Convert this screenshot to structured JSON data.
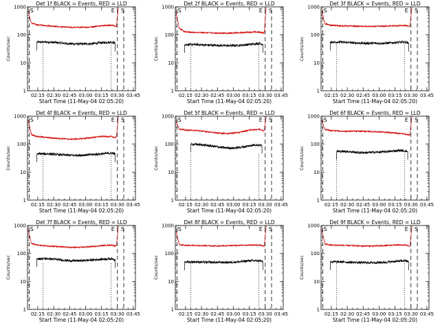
{
  "figure": {
    "colors": {
      "events": "#000000",
      "lld": "#d00000",
      "axes": "#000000"
    },
    "common": {
      "ylabel": "Counts/sec",
      "xlabel": "Start Time (11-May-04 02:05:20)",
      "y_ticks": [
        "1",
        "10",
        "100",
        "1000"
      ],
      "x_ticks": [
        "02:15",
        "02:30",
        "02:45",
        "03:00",
        "03:15",
        "03:30",
        "03:45"
      ],
      "marker_s": "S",
      "marker_e": "E"
    }
  },
  "chart_data": [
    {
      "type": "line",
      "title": "Det 1f BLACK = Events, RED = LLD",
      "xlabel": "Start Time (11-May-04 02:05:20)",
      "ylabel": "Counts/sec",
      "y_scale": "log",
      "ylim": [
        1,
        1000
      ],
      "xlim": [
        "02:05:20",
        "03:47:00"
      ],
      "series": [
        {
          "name": "Events",
          "color": "#000000",
          "x": [
            "02:14",
            "02:25",
            "02:35",
            "02:45",
            "02:55",
            "03:05",
            "03:15",
            "03:25",
            "03:28"
          ],
          "y": [
            55,
            55,
            52,
            48,
            47,
            48,
            52,
            55,
            50
          ]
        },
        {
          "name": "LLD",
          "color": "#d00000",
          "x": [
            "02:06",
            "02:09",
            "02:14",
            "02:25",
            "02:35",
            "02:45",
            "02:55",
            "03:05",
            "03:15",
            "03:25",
            "03:29",
            "03:31"
          ],
          "y": [
            700,
            260,
            230,
            210,
            195,
            185,
            185,
            190,
            215,
            220,
            200,
            1000
          ]
        }
      ],
      "vertical_lines": {
        "dashed": [
          "02:07",
          "03:30",
          "03:36"
        ],
        "dotted": [
          "02:20",
          "03:24"
        ]
      }
    },
    {
      "type": "line",
      "title": "Det 2f BLACK = Events, RED = LLD",
      "xlabel": "Start Time (11-May-04 02:05:20)",
      "ylabel": "Counts/sec",
      "y_scale": "log",
      "ylim": [
        1,
        1000
      ],
      "xlim": [
        "02:05:20",
        "03:47:00"
      ],
      "series": [
        {
          "name": "Events",
          "color": "#000000",
          "x": [
            "02:14",
            "02:25",
            "02:35",
            "02:45",
            "02:55",
            "03:05",
            "03:15",
            "03:25",
            "03:28"
          ],
          "y": [
            45,
            45,
            43,
            42,
            41,
            42,
            45,
            50,
            45
          ]
        },
        {
          "name": "LLD",
          "color": "#d00000",
          "x": [
            "02:06",
            "02:09",
            "02:14",
            "02:25",
            "02:35",
            "02:45",
            "02:55",
            "03:05",
            "03:15",
            "03:25",
            "03:29",
            "03:31"
          ],
          "y": [
            650,
            170,
            130,
            120,
            120,
            115,
            115,
            118,
            125,
            125,
            115,
            1000
          ]
        }
      ],
      "vertical_lines": {
        "dashed": [
          "02:07",
          "03:30",
          "03:36"
        ],
        "dotted": [
          "02:20",
          "03:24"
        ]
      }
    },
    {
      "type": "line",
      "title": "Det 3f BLACK = Events, RED = LLD",
      "xlabel": "Start Time (11-May-04 02:05:20)",
      "ylabel": "Counts/sec",
      "y_scale": "log",
      "ylim": [
        1,
        1000
      ],
      "xlim": [
        "02:05:20",
        "03:47:00"
      ],
      "series": [
        {
          "name": "Events",
          "color": "#000000",
          "x": [
            "02:14",
            "02:25",
            "02:35",
            "02:45",
            "02:55",
            "03:05",
            "03:15",
            "03:25",
            "03:28"
          ],
          "y": [
            55,
            55,
            52,
            50,
            50,
            50,
            53,
            55,
            50
          ]
        },
        {
          "name": "LLD",
          "color": "#d00000",
          "x": [
            "02:06",
            "02:09",
            "02:14",
            "02:25",
            "02:35",
            "02:45",
            "02:55",
            "03:05",
            "03:15",
            "03:25",
            "03:29",
            "03:31"
          ],
          "y": [
            700,
            250,
            220,
            210,
            205,
            200,
            200,
            205,
            210,
            215,
            200,
            1000
          ]
        }
      ],
      "vertical_lines": {
        "dashed": [
          "02:07",
          "03:30",
          "03:36"
        ],
        "dotted": [
          "02:20",
          "03:24"
        ]
      }
    },
    {
      "type": "line",
      "title": "Det 4f BLACK = Events, RED = LLD",
      "xlabel": "Start Time (11-May-04 02:05:20)",
      "ylabel": "Counts/sec",
      "y_scale": "log",
      "ylim": [
        1,
        1000
      ],
      "xlim": [
        "02:05:20",
        "03:47:00"
      ],
      "series": [
        {
          "name": "Events",
          "color": "#000000",
          "x": [
            "02:14",
            "02:25",
            "02:35",
            "02:45",
            "02:55",
            "03:05",
            "03:15",
            "03:25",
            "03:28"
          ],
          "y": [
            45,
            45,
            42,
            40,
            40,
            42,
            45,
            48,
            45
          ]
        },
        {
          "name": "LLD",
          "color": "#d00000",
          "x": [
            "02:06",
            "02:09",
            "02:14",
            "02:25",
            "02:35",
            "02:45",
            "02:55",
            "03:05",
            "03:15",
            "03:25",
            "03:29",
            "03:31"
          ],
          "y": [
            700,
            220,
            190,
            170,
            160,
            150,
            155,
            170,
            190,
            185,
            170,
            1000
          ]
        }
      ],
      "vertical_lines": {
        "dashed": [
          "02:07",
          "03:30",
          "03:36"
        ],
        "dotted": [
          "02:20",
          "03:24"
        ]
      }
    },
    {
      "type": "line",
      "title": "Det 5f BLACK = Events, RED = LLD",
      "xlabel": "Start Time (11-May-04 02:05:20)",
      "ylabel": "Counts/sec",
      "y_scale": "log",
      "ylim": [
        1,
        1000
      ],
      "xlim": [
        "02:05:20",
        "03:47:00"
      ],
      "series": [
        {
          "name": "Events",
          "color": "#000000",
          "x": [
            "02:20",
            "02:30",
            "02:40",
            "02:50",
            "03:00",
            "03:10",
            "03:20",
            "03:27"
          ],
          "y": [
            100,
            95,
            85,
            75,
            72,
            80,
            95,
            90
          ]
        },
        {
          "name": "LLD",
          "color": "#d00000",
          "x": [
            "02:06",
            "02:09",
            "02:14",
            "02:25",
            "02:35",
            "02:45",
            "02:55",
            "03:05",
            "03:15",
            "03:25",
            "03:29",
            "03:31"
          ],
          "y": [
            650,
            350,
            320,
            310,
            280,
            250,
            240,
            260,
            320,
            340,
            300,
            1000
          ]
        }
      ],
      "vertical_lines": {
        "dashed": [
          "02:07",
          "03:30",
          "03:36"
        ],
        "dotted": [
          "02:20",
          "03:24"
        ]
      }
    },
    {
      "type": "line",
      "title": "Det 6f BLACK = Events, RED = LLD",
      "xlabel": "Start Time (11-May-04 02:05:20)",
      "ylabel": "Counts/sec",
      "y_scale": "log",
      "ylim": [
        1,
        1000
      ],
      "xlim": [
        "02:05:20",
        "03:47:00"
      ],
      "series": [
        {
          "name": "Events",
          "color": "#000000",
          "x": [
            "02:20",
            "02:30",
            "02:40",
            "02:50",
            "03:00",
            "03:10",
            "03:20",
            "03:27"
          ],
          "y": [
            55,
            55,
            50,
            50,
            52,
            55,
            60,
            55
          ]
        },
        {
          "name": "LLD",
          "color": "#d00000",
          "x": [
            "02:06",
            "02:09",
            "02:14",
            "02:25",
            "02:35",
            "02:45",
            "02:55",
            "03:05",
            "03:15",
            "03:25",
            "03:29",
            "03:31"
          ],
          "y": [
            700,
            330,
            310,
            290,
            290,
            290,
            280,
            270,
            250,
            230,
            210,
            1000
          ]
        }
      ],
      "vertical_lines": {
        "dashed": [
          "02:07",
          "03:30",
          "03:36"
        ],
        "dotted": [
          "02:20",
          "03:24"
        ]
      }
    },
    {
      "type": "line",
      "title": "Det 7f BLACK = Events, RED = LLD",
      "xlabel": "Start Time (11-May-04 02:05:20)",
      "ylabel": "Counts/sec",
      "y_scale": "log",
      "ylim": [
        1,
        1000
      ],
      "xlim": [
        "02:05:20",
        "03:47:00"
      ],
      "series": [
        {
          "name": "Events",
          "color": "#000000",
          "x": [
            "02:14",
            "02:25",
            "02:35",
            "02:45",
            "02:55",
            "03:05",
            "03:15",
            "03:25",
            "03:28"
          ],
          "y": [
            65,
            65,
            60,
            55,
            55,
            58,
            62,
            65,
            60
          ]
        },
        {
          "name": "LLD",
          "color": "#d00000",
          "x": [
            "02:06",
            "02:09",
            "02:14",
            "02:25",
            "02:35",
            "02:45",
            "02:55",
            "03:05",
            "03:15",
            "03:25",
            "03:29",
            "03:31"
          ],
          "y": [
            700,
            230,
            200,
            185,
            175,
            165,
            165,
            175,
            190,
            200,
            180,
            1000
          ]
        }
      ],
      "vertical_lines": {
        "dashed": [
          "02:07",
          "03:30",
          "03:36"
        ],
        "dotted": [
          "02:20",
          "03:24"
        ]
      }
    },
    {
      "type": "line",
      "title": "Det 8f BLACK = Events, RED = LLD",
      "xlabel": "Start Time (11-May-04 02:05:20)",
      "ylabel": "Counts/sec",
      "y_scale": "log",
      "ylim": [
        1,
        1000
      ],
      "xlim": [
        "02:05:20",
        "03:47:00"
      ],
      "series": [
        {
          "name": "Events",
          "color": "#000000",
          "x": [
            "02:14",
            "02:25",
            "02:35",
            "02:45",
            "02:55",
            "03:05",
            "03:15",
            "03:25",
            "03:28"
          ],
          "y": [
            50,
            50,
            48,
            48,
            48,
            50,
            55,
            55,
            50
          ]
        },
        {
          "name": "LLD",
          "color": "#d00000",
          "x": [
            "02:06",
            "02:09",
            "02:14",
            "02:25",
            "02:35",
            "02:45",
            "02:55",
            "03:05",
            "03:15",
            "03:25",
            "03:29",
            "03:31"
          ],
          "y": [
            650,
            210,
            195,
            195,
            190,
            185,
            190,
            195,
            200,
            200,
            180,
            1000
          ]
        }
      ],
      "vertical_lines": {
        "dashed": [
          "02:07",
          "03:30",
          "03:36"
        ],
        "dotted": [
          "02:20",
          "03:24"
        ]
      }
    },
    {
      "type": "line",
      "title": "Det 9f BLACK = Events, RED = LLD",
      "xlabel": "Start Time (11-May-04 02:05:20)",
      "ylabel": "Counts/sec",
      "y_scale": "log",
      "ylim": [
        1,
        1000
      ],
      "xlim": [
        "02:05:20",
        "03:47:00"
      ],
      "series": [
        {
          "name": "Events",
          "color": "#000000",
          "x": [
            "02:14",
            "02:25",
            "02:35",
            "02:45",
            "02:55",
            "03:05",
            "03:15",
            "03:25",
            "03:28"
          ],
          "y": [
            50,
            50,
            48,
            47,
            47,
            48,
            52,
            55,
            50
          ]
        },
        {
          "name": "LLD",
          "color": "#d00000",
          "x": [
            "02:06",
            "02:09",
            "02:14",
            "02:25",
            "02:35",
            "02:45",
            "02:55",
            "03:05",
            "03:15",
            "03:25",
            "03:29",
            "03:31"
          ],
          "y": [
            700,
            220,
            200,
            195,
            190,
            185,
            185,
            190,
            200,
            200,
            185,
            1000
          ]
        }
      ],
      "vertical_lines": {
        "dashed": [
          "02:07",
          "03:30",
          "03:36"
        ],
        "dotted": [
          "02:20",
          "03:24"
        ]
      }
    }
  ]
}
